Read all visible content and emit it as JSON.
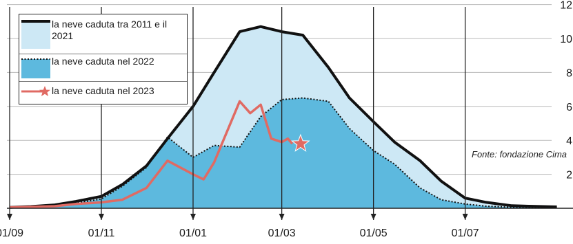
{
  "chart_data": {
    "type": "area",
    "x_ticks": [
      "01/09",
      "01/11",
      "01/01",
      "01/03",
      "01/05",
      "01/07"
    ],
    "y_ticks": [
      "2",
      "4",
      "6",
      "8",
      "10",
      "12"
    ],
    "ylim": [
      0,
      12
    ],
    "grid": true,
    "legend_position": "top-left",
    "series": [
      {
        "name": "la neve caduta tra 2011 e il 2021",
        "style": "filled area, black line",
        "fill": "#cde8f5",
        "line": "#111111",
        "x": [
          "01/09",
          "15/09",
          "01/10",
          "15/10",
          "01/11",
          "15/11",
          "01/12",
          "15/12",
          "01/01",
          "15/01",
          "01/02",
          "15/02",
          "01/03",
          "15/03",
          "01/04",
          "15/04",
          "01/05",
          "15/05",
          "01/06",
          "15/06",
          "01/07",
          "15/07",
          "01/08",
          "31/08"
        ],
        "values": [
          0.05,
          0.1,
          0.2,
          0.4,
          0.7,
          1.4,
          2.5,
          4.1,
          6.0,
          8.0,
          10.4,
          10.7,
          10.4,
          10.2,
          8.3,
          6.5,
          5.1,
          3.9,
          2.8,
          1.6,
          0.6,
          0.35,
          0.15,
          0.08
        ]
      },
      {
        "name": "la neve caduta nel 2022",
        "style": "filled area, dotted line",
        "fill": "#5db9de",
        "line": "#111111",
        "x": [
          "01/09",
          "15/09",
          "01/10",
          "15/10",
          "01/11",
          "15/11",
          "01/12",
          "15/12",
          "01/01",
          "15/01",
          "01/02",
          "15/02",
          "01/03",
          "15/03",
          "01/04",
          "15/04",
          "01/05",
          "15/05",
          "01/06",
          "15/06",
          "01/07",
          "15/07",
          "01/08",
          "31/08"
        ],
        "values": [
          0.05,
          0.1,
          0.15,
          0.3,
          0.55,
          1.3,
          2.4,
          4.2,
          3.0,
          3.7,
          3.6,
          5.4,
          6.4,
          6.5,
          6.3,
          4.7,
          3.4,
          2.6,
          1.2,
          0.5,
          0.25,
          0.12,
          0.06,
          0.04
        ]
      },
      {
        "name": "la neve caduta nel 2023",
        "style": "red line with star at last value",
        "line": "#e06a63",
        "x": [
          "01/09",
          "15/09",
          "01/10",
          "15/10",
          "01/11",
          "15/11",
          "01/12",
          "15/12",
          "01/01",
          "08/01",
          "15/01",
          "01/02",
          "08/02",
          "15/02",
          "22/02",
          "01/03",
          "05/03",
          "08/03"
        ],
        "values": [
          0.05,
          0.08,
          0.12,
          0.25,
          0.35,
          0.5,
          1.2,
          2.8,
          2.0,
          1.7,
          2.7,
          6.3,
          5.6,
          6.1,
          4.1,
          3.9,
          4.1,
          3.8
        ]
      }
    ],
    "source": "Fonte: fondazione Cima"
  },
  "legend": {
    "item1_label": "la neve caduta tra 2011 e il 2021",
    "item2_label": "la neve caduta nel 2022",
    "item3_label": "la neve caduta nel 2023"
  },
  "source_text": "Fonte: fondazione Cima"
}
